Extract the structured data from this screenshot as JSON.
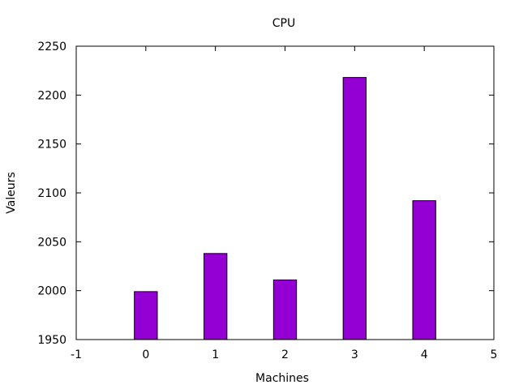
{
  "chart_data": {
    "type": "bar",
    "title": "CPU",
    "xlabel": "Machines",
    "ylabel": "Valeurs",
    "x": [
      0,
      1,
      2,
      3,
      4
    ],
    "values": [
      1999,
      2038,
      2011,
      2218,
      2092
    ],
    "xlim": [
      -1,
      5
    ],
    "ylim": [
      1950,
      2250
    ],
    "xticks": [
      "-1",
      "0",
      "1",
      "2",
      "3",
      "4",
      "5"
    ],
    "yticks": [
      "1950",
      "2000",
      "2050",
      "2100",
      "2150",
      "2200",
      "2250"
    ],
    "bar_color": "#9400d3",
    "grid": false,
    "legend": "none"
  }
}
